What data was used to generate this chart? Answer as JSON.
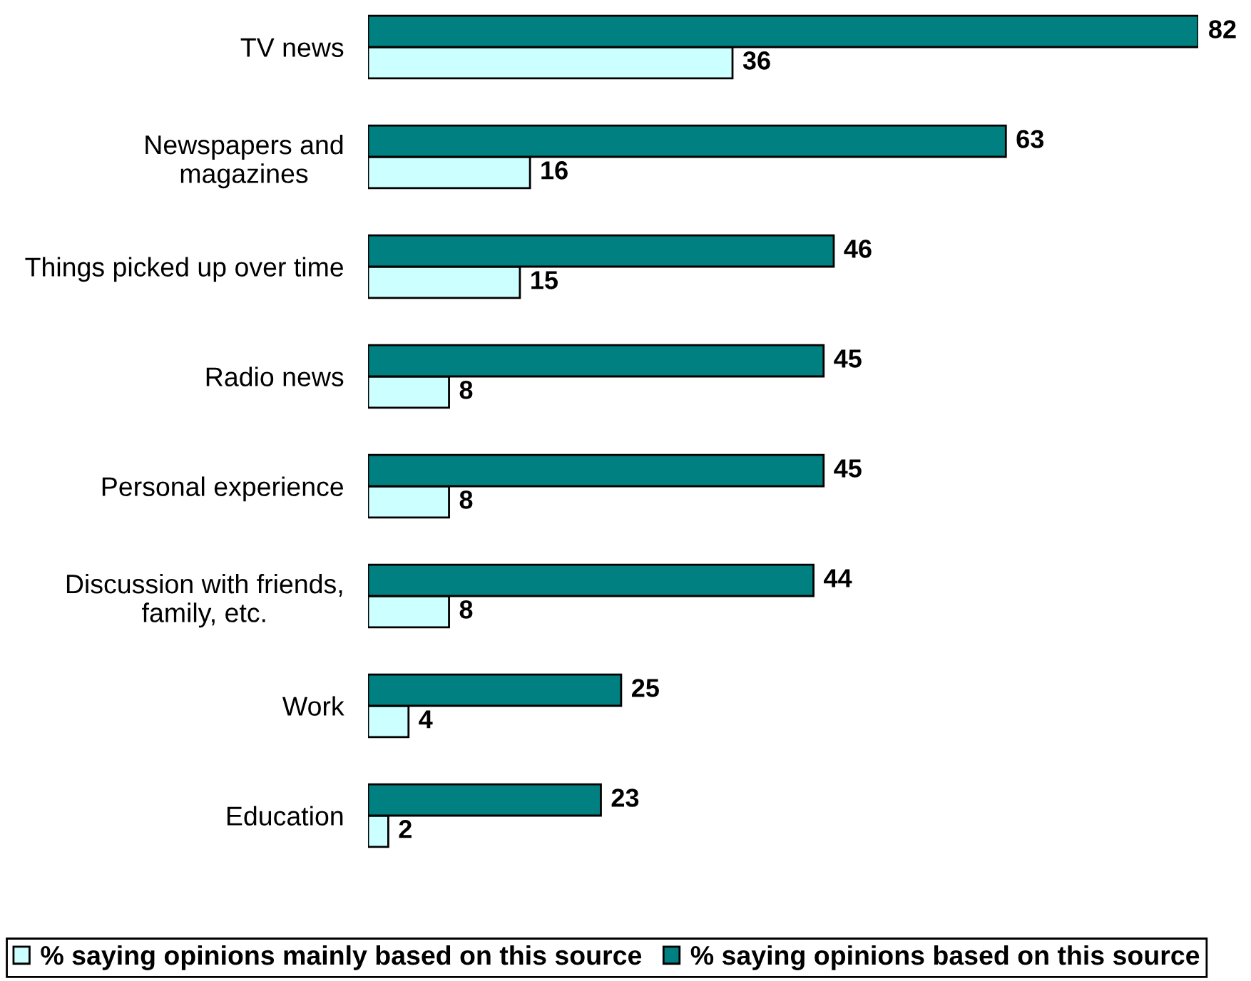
{
  "chart_data": {
    "type": "bar",
    "orientation": "horizontal",
    "categories": [
      "TV news",
      "Newspapers and\nmagazines",
      "Things picked up over time",
      "Radio news",
      "Personal experience",
      "Discussion with friends,\nfamily, etc.",
      "Work",
      "Education"
    ],
    "series": [
      {
        "name": "% saying opinions mainly based on this source",
        "color": "#ccffff",
        "values": [
          36,
          16,
          15,
          8,
          8,
          8,
          4,
          2
        ]
      },
      {
        "name": "% saying opinions based on this source",
        "color": "#008080",
        "values": [
          82,
          63,
          46,
          45,
          45,
          44,
          25,
          23
        ]
      }
    ],
    "data_labels": true,
    "legend": "bottom",
    "grid": false,
    "tick_labels": "y"
  }
}
